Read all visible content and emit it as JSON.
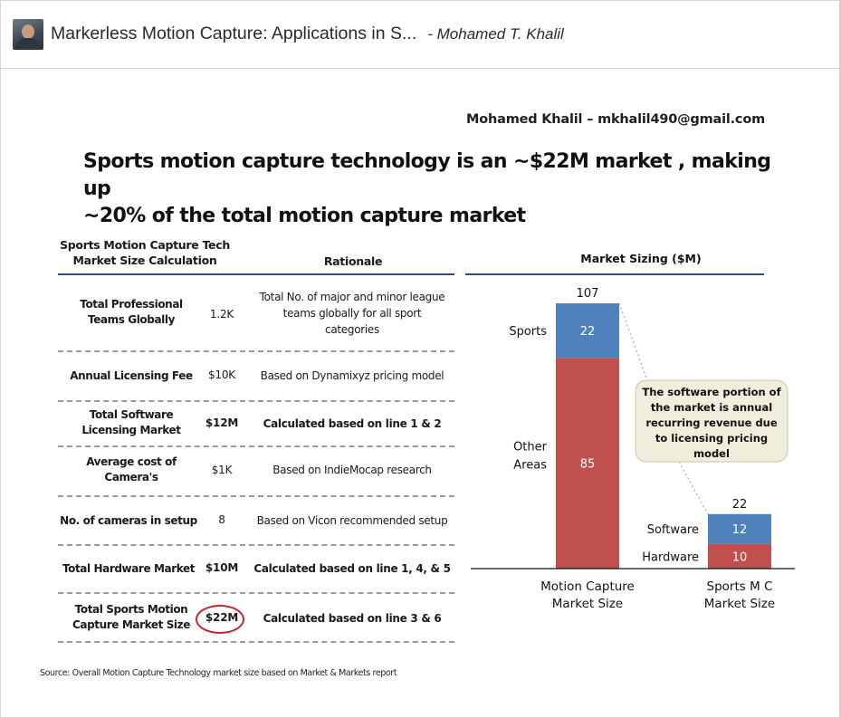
{
  "header": {
    "title": "Markerless Motion Capture: Applications in S...",
    "author": "- Mohamed T. Khalil"
  },
  "slide": {
    "contact": "Mohamed Khalil – mkhalil490@gmail.com",
    "headline_line1": "Sports motion capture technology is an ~$22M  market , making up",
    "headline_line2": "~20% of the total motion capture market",
    "table": {
      "col1_header_line1": "Sports Motion Capture Tech",
      "col1_header_line2": "Market Size Calculation",
      "col3_header": "Rationale",
      "rows": [
        {
          "label_line1": "Total Professional",
          "label_line2": "Teams Globally",
          "value": "1.2K",
          "rationale_line1": "Total No. of major and minor league",
          "rationale_line2": "teams globally for all sport",
          "rationale_line3": "categories"
        },
        {
          "label_line1": "Annual Licensing Fee",
          "value": "$10K",
          "rationale_line1": "Based on Dynamixyz pricing model"
        },
        {
          "label_line1": "Total Software",
          "label_line2": "Licensing Market",
          "value": "$12M",
          "rationale_line1": "Calculated based on line 1 & 2"
        },
        {
          "label_line1": "Average cost of",
          "label_line2": "Camera's",
          "value": "$1K",
          "rationale_line1": "Based on IndieMocap research"
        },
        {
          "label_line1": "No. of cameras in setup",
          "value": "8",
          "rationale_line1": "Based on Vicon recommended setup"
        },
        {
          "label_line1": "Total Hardware Market",
          "value": "$10M",
          "rationale_line1": "Calculated based on line 1, 4, & 5"
        },
        {
          "label_line1": "Total Sports Motion",
          "label_line2": "Capture Market Size",
          "value": "$22M",
          "rationale_line1": "Calculated based on line 3 & 6"
        }
      ]
    },
    "source": "Source: Overall Motion Capture Technology market size based on Market & Markets report",
    "callout_line1": "The software portion of",
    "callout_line2": "the market is annual",
    "callout_line3": "recurring revenue due",
    "callout_line4": "to licensing  pricing",
    "callout_line5": "model"
  },
  "chart_data": {
    "type": "bar",
    "stacked": true,
    "title": "Market Sizing ($M)",
    "categories": [
      "Motion Capture\nMarket Size",
      "Sports MC\nMarket Size"
    ],
    "category_lines": [
      [
        "Motion Capture",
        "Market Size"
      ],
      [
        "Sports M C",
        "Market Size"
      ]
    ],
    "totals": [
      107,
      22
    ],
    "series": [
      {
        "name": "bottom",
        "values": [
          85,
          10
        ],
        "color": "#c0504d",
        "labels": [
          [
            "Other",
            "Areas"
          ],
          [
            "Hardware"
          ]
        ]
      },
      {
        "name": "top",
        "values": [
          22,
          12
        ],
        "color": "#4f81bd",
        "labels": [
          [
            "Sports"
          ],
          [
            "Software"
          ]
        ]
      }
    ],
    "ylim": [
      0,
      107
    ]
  }
}
